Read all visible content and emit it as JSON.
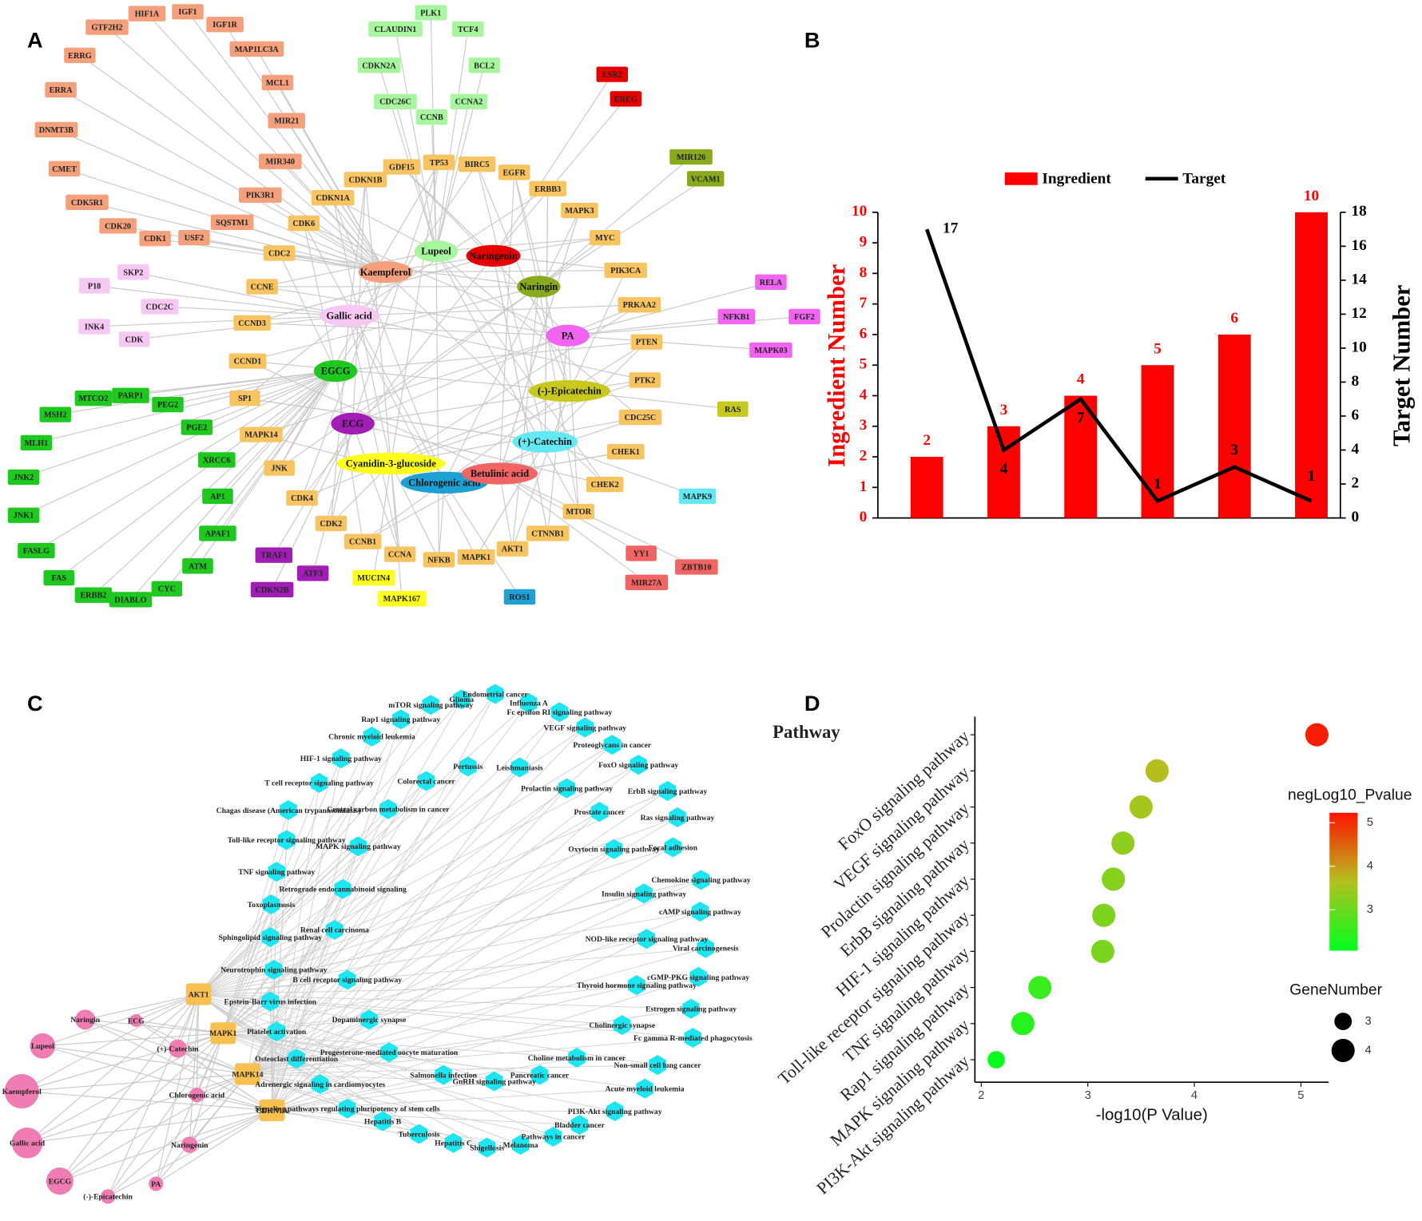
{
  "panel_labels": [
    "A",
    "B",
    "C",
    "D"
  ],
  "network_a": {
    "hubs": [
      "Kaempferol",
      "Lupeol",
      "Naringenin",
      "Naringin",
      "Gallic acid",
      "PA",
      "EGCG",
      "(-)-Epicatechin",
      "ECG",
      "(+)-Catechin",
      "Cyanidin-3-glucoside",
      "Chlorogenic acid",
      "Betulinic acid"
    ],
    "targets": [
      "HIF1A",
      "IGF1",
      "GTF2H2",
      "IGF1R",
      "MAP1LC3A",
      "ERRG",
      "MCL1",
      "ERRA",
      "MIR21",
      "DNMT3B",
      "MIR340",
      "CMET",
      "PIK3R1",
      "CDK5R1",
      "SQSTM1",
      "CDK20",
      "CDK1",
      "USF2",
      "PLK1",
      "CLAUDIN1",
      "TCF4",
      "CDKN2A",
      "BCL2",
      "CDC26C",
      "CCNA2",
      "CCNB",
      "ESR2",
      "EREG",
      "MIR126",
      "VCAM1",
      "TP53",
      "GDF15",
      "BIRC5",
      "EGFR",
      "CDKN1B",
      "ERBB3",
      "CDKN1A",
      "CDK6",
      "MAPK3",
      "CDC2",
      "MYC",
      "PIK3CA",
      "CCNE",
      "PRKAA2",
      "CCND3",
      "PTEN",
      "CCND1",
      "PTK2",
      "SP1",
      "CDC25C",
      "MAPK14",
      "CHEK1",
      "JNK",
      "CHEK2",
      "CDK4",
      "MTOR",
      "CDK2",
      "CTNNB1",
      "CCNB1",
      "AKT1",
      "CCNA",
      "MAPK1",
      "NFKB",
      "SKP2",
      "P18",
      "CDC2C",
      "INK4",
      "CDK",
      "RELA",
      "NFKB1",
      "FGF2",
      "MAPK03",
      "PARP1",
      "MTCO2",
      "PEG2",
      "MSH2",
      "PGE2",
      "MLH1",
      "XRCC6",
      "JNK2",
      "AP1",
      "JNK1",
      "APAF1",
      "FASLG",
      "ATM",
      "FAS",
      "CYC",
      "ERBB2",
      "DIABLO",
      "RAS",
      "MAPK9",
      "TRAF1",
      "ATF3",
      "CDKN2B",
      "MUCIN4",
      "MAPK167",
      "ROS1",
      "YY1",
      "ZBTB10",
      "MIR27A"
    ]
  },
  "chart_data": [
    {
      "type": "bar",
      "categories": [
        null,
        null,
        null,
        null,
        null,
        null
      ],
      "series": [
        {
          "name": "Ingredient",
          "color": "#ff0000",
          "type": "bar",
          "values": [
            2,
            3,
            4,
            5,
            6,
            10
          ]
        },
        {
          "name": "Target",
          "color": "#000000",
          "type": "line",
          "axis": "y2",
          "values": [
            17,
            4,
            7,
            1,
            3,
            1
          ]
        }
      ],
      "ylabel": "Ingredient Number",
      "y2label": "Target Number",
      "ylim": [
        0,
        10
      ],
      "yticks": [
        0,
        1,
        2,
        3,
        4,
        5,
        6,
        7,
        8,
        9,
        10
      ],
      "y2lim": [
        0,
        18
      ],
      "y2ticks": [
        0,
        2,
        4,
        6,
        8,
        10,
        12,
        14,
        16,
        18
      ],
      "legend": "top"
    },
    {
      "type": "scatter",
      "title": "Pathway",
      "categories": [
        "FoxO signaling pathway",
        "VEGF signaling pathway",
        "Prolactin signaling pathway",
        "ErbB signaling pathway",
        "HIF-1 signaling pathway",
        "Toll-like receptor signaling pathway",
        "TNF signaling pathway",
        "Rap1 signaling pathway",
        "MAPK signaling pathway",
        "PI3K-Akt signaling pathway"
      ],
      "values": [
        5.15,
        3.65,
        3.5,
        3.33,
        3.24,
        3.15,
        3.14,
        2.55,
        2.39,
        2.14
      ],
      "sizes": [
        4,
        4,
        4,
        4,
        4,
        4,
        4,
        4,
        4,
        3
      ],
      "xlabel": "-log10(P Value)",
      "xlim": [
        1.94,
        5.26
      ],
      "xticks": [
        2,
        3,
        4,
        5
      ],
      "color_label": "negLog10_Pvalue",
      "colorlim": [
        2.06,
        5.23
      ],
      "colorticks": [
        3,
        4,
        5
      ],
      "colors": [
        "#00ff1e",
        "#b4c01e",
        "#ff1400"
      ],
      "size_label": "GeneNumber",
      "size_legend": [
        3,
        4
      ]
    }
  ],
  "network_c": {
    "compounds": [
      "Naringin",
      "ECG",
      "Lupeol",
      "(+)-Catechin",
      "Kaempferol",
      "Chlorogenic acid",
      "Gallic acid",
      "Naringenin",
      "EGCG",
      "PA",
      "(-)-Epicatechin"
    ],
    "targets": [
      "AKT1",
      "MAPK1",
      "MAPK14",
      "CDKN1A"
    ],
    "pathways": [
      "Glioma",
      "Endometrial cancer",
      "Influenza A",
      "Fc epsilon RI signaling pathway",
      "mTOR signaling pathway",
      "Rap1 signaling pathway",
      "VEGF signaling pathway",
      "Chronic myeloid leukemia",
      "Proteoglycans in cancer",
      "HIF-1 signaling pathway",
      "Pertussis",
      "Leishmaniasis",
      "FoxO signaling pathway",
      "T cell receptor signaling pathway",
      "Colorectal cancer",
      "Prolactin signaling pathway",
      "ErbB signaling pathway",
      "Chagas disease (American trypanosomiasis)",
      "Central carbon metabolism in cancer",
      "Prostate cancer",
      "Ras signaling pathway",
      "Toll-like receptor signaling pathway",
      "MAPK signaling pathway",
      "Oxytocin signaling pathway",
      "Focal adhesion",
      "TNF signaling pathway",
      "Chemokine signaling pathway",
      "Retrograde endocannabinoid signaling",
      "Insulin signaling pathway",
      "Toxoplasmosis",
      "cAMP signaling pathway",
      "Renal cell carcinoma",
      "Sphingolipid signaling pathway",
      "NOD-like receptor signaling pathway",
      "Viral carcinogenesis",
      "Neurotrophin signaling pathway",
      "B cell receptor signaling pathway",
      "cGMP-PKG signaling pathway",
      "Thyroid hormone signaling pathway",
      "Epstein-Barr virus infection",
      "Estrogen signaling pathway",
      "Dopaminergic synapse",
      "Cholinergic synapse",
      "Platelet activation",
      "Fc gamma R-mediated phagocytosis",
      "Progesterone-mediated oocyte maturation",
      "Osteoclast differentiation",
      "Choline metabolism in cancer",
      "Non-small cell lung cancer",
      "Salmonella infection",
      "GnRH signaling pathway",
      "Pancreatic cancer",
      "Adrenergic signaling in cardiomyocytes",
      "Acute myeloid leukemia",
      "Signaling pathways regulating pluripotency of stem cells",
      "PI3K-Akt signaling pathway",
      "Hepatitis B",
      "Bladder cancer",
      "Tuberculosis",
      "Hepatitis C",
      "Shigellosis",
      "Melanoma",
      "Pathways in cancer"
    ]
  }
}
